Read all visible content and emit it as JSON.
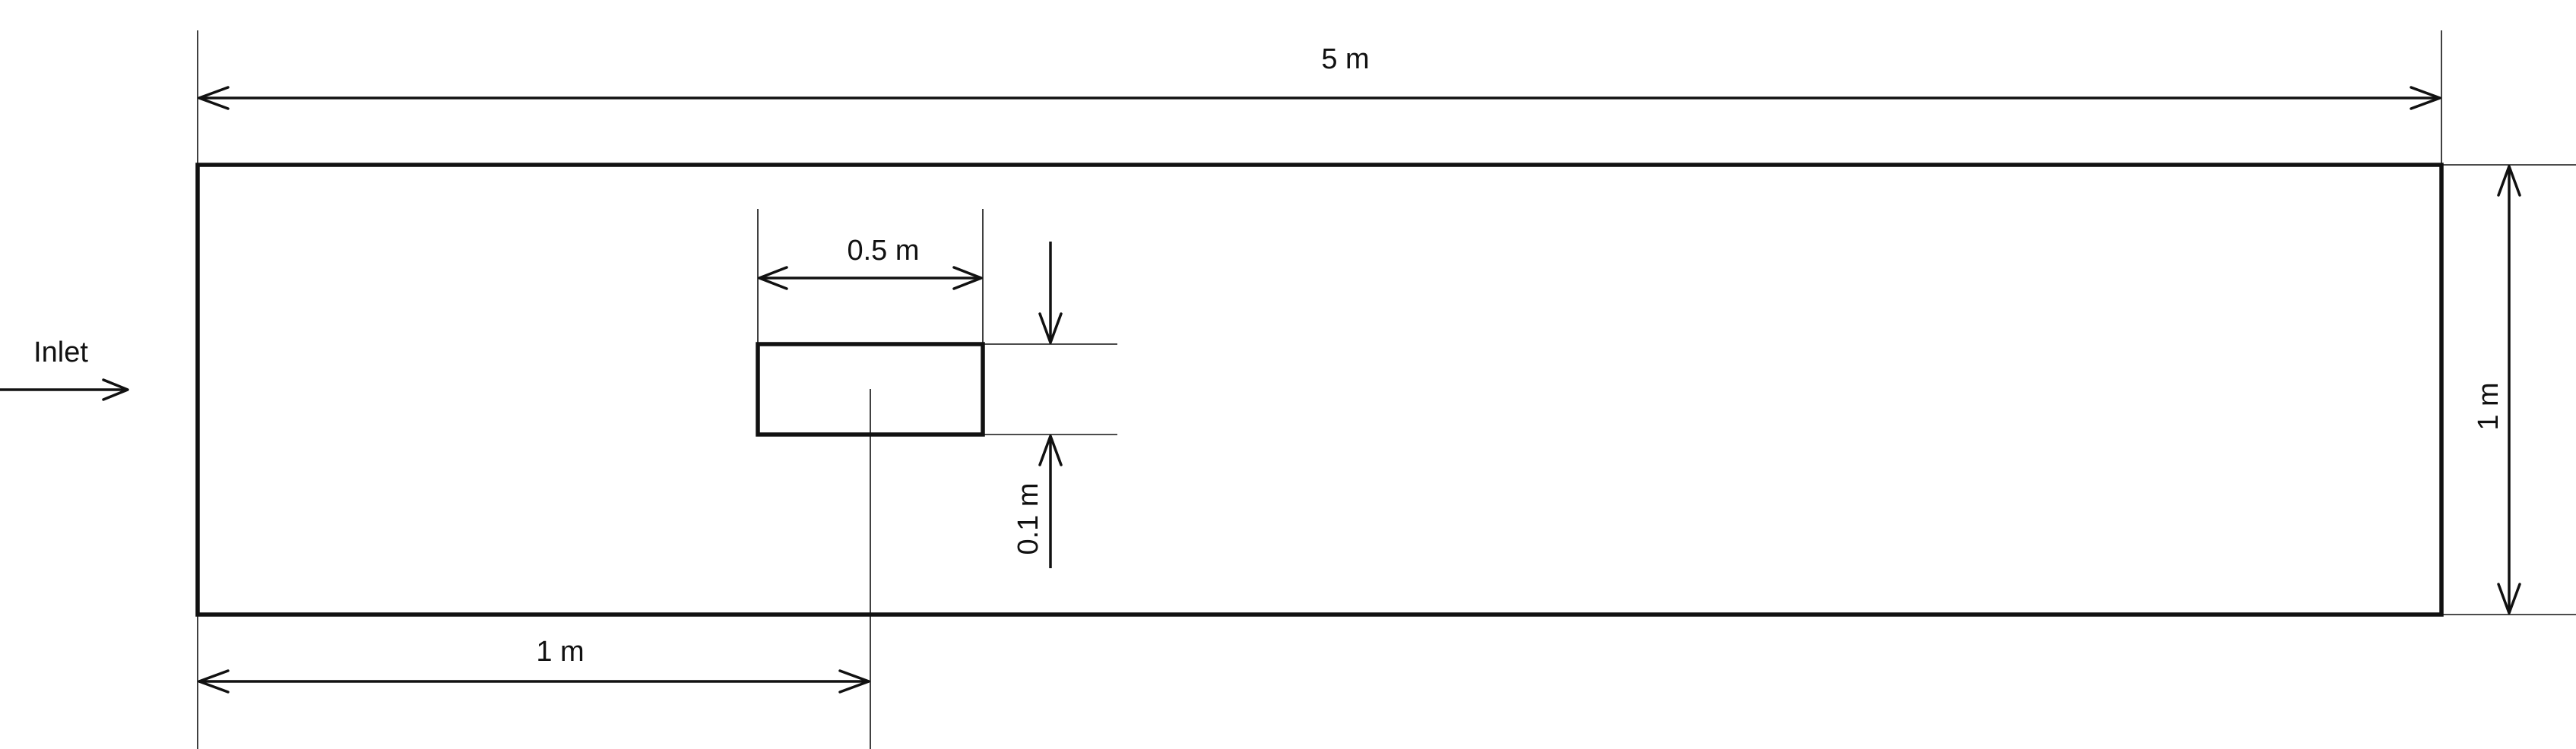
{
  "diagram": {
    "inlet_label": "Inlet",
    "dimensions": {
      "channel_length": "5 m",
      "channel_height": "1 m",
      "obstacle_width": "0.5 m",
      "obstacle_height": "0.1 m",
      "obstacle_offset": "1 m"
    },
    "colors": {
      "stroke": "#111111",
      "background": "#ffffff"
    }
  }
}
